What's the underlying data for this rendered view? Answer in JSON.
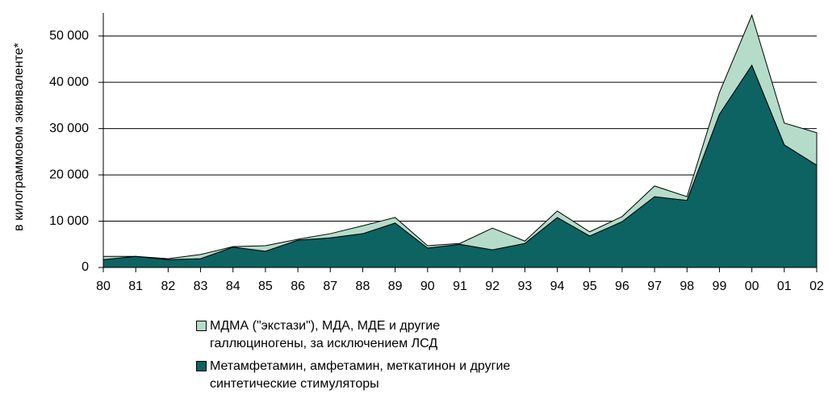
{
  "chart_data": {
    "type": "stacked_area",
    "y_label": "в килограммовом эквиваленте*",
    "categories": [
      "80",
      "81",
      "82",
      "83",
      "84",
      "85",
      "86",
      "87",
      "88",
      "89",
      "90",
      "91",
      "92",
      "93",
      "94",
      "95",
      "96",
      "97",
      "98",
      "99",
      "00",
      "01",
      "02"
    ],
    "series": [
      {
        "name": "Метамфетамин, амфетамин, меткатинон и другие синтетические стимуляторы",
        "color": "#0d6262",
        "values": [
          1700,
          2400,
          1700,
          1900,
          4400,
          3500,
          5900,
          6400,
          7300,
          9600,
          4200,
          5000,
          3800,
          5200,
          10800,
          6800,
          9900,
          15300,
          14500,
          33100,
          43700,
          26500,
          22100
        ]
      },
      {
        "name": "МДМА (\"экстази\"), МДА, МДЕ и другие галлюциногены, за исключением ЛСД",
        "color": "#b5dcc9",
        "values": [
          700,
          0,
          200,
          900,
          100,
          1200,
          200,
          900,
          1700,
          1200,
          500,
          200,
          4700,
          500,
          1400,
          900,
          1100,
          2300,
          800,
          4700,
          10800,
          4700,
          7000
        ]
      }
    ],
    "ylim": [
      0,
      55000
    ],
    "yticks": [
      {
        "value": 0,
        "label": "0"
      },
      {
        "value": 10000,
        "label": "10 000"
      },
      {
        "value": 20000,
        "label": "20 000"
      },
      {
        "value": 30000,
        "label": "30 000"
      },
      {
        "value": 40000,
        "label": "40 000"
      },
      {
        "value": 50000,
        "label": "50 000"
      }
    ],
    "grid": true
  }
}
